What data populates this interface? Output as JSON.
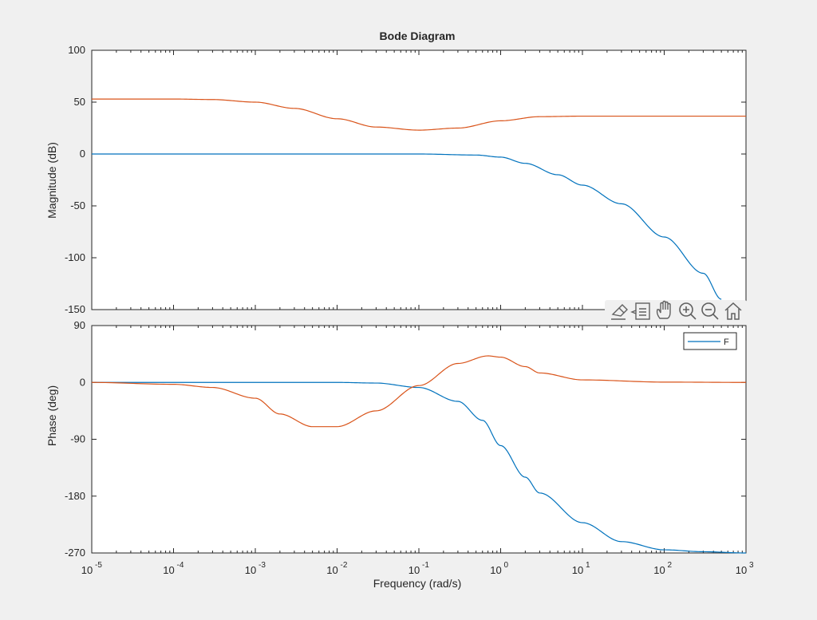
{
  "chart_data": [
    {
      "type": "line",
      "title": "Bode Diagram",
      "xlabel": "Frequency  (rad/s)",
      "ylabel": "Magnitude (dB)",
      "xscale": "log",
      "xlim": [
        1e-05,
        1000
      ],
      "ylim": [
        -150,
        100
      ],
      "yticks": [
        "100",
        "50",
        "0",
        "-50",
        "-100",
        "-150"
      ],
      "grid": false,
      "series": [
        {
          "color": "#0072BD",
          "x": [
            1e-05,
            0.001,
            0.1,
            0.5,
            1,
            2,
            5,
            10,
            30,
            100,
            300,
            500
          ],
          "y": [
            0,
            0,
            0,
            -1,
            -3,
            -9,
            -20,
            -30,
            -48,
            -80,
            -115,
            -140
          ]
        },
        {
          "color": "#D95319",
          "x": [
            1e-05,
            0.0001,
            0.0003,
            0.001,
            0.003,
            0.01,
            0.03,
            0.1,
            0.3,
            1,
            3,
            10,
            100,
            1000
          ],
          "y": [
            53,
            53,
            52.5,
            50,
            44,
            34,
            26,
            23,
            25,
            32,
            36,
            36.5,
            36.5,
            36.5
          ]
        }
      ]
    },
    {
      "type": "line",
      "xlabel": "Frequency  (rad/s)",
      "ylabel": "Phase (deg)",
      "xscale": "log",
      "xlim": [
        1e-05,
        1000
      ],
      "xticks": [
        "10",
        "10",
        "10",
        "10",
        "10",
        "10",
        "10",
        "10",
        "10"
      ],
      "xtick_exponents": [
        "-5",
        "-4",
        "-3",
        "-2",
        "-1",
        "0",
        "1",
        "2",
        "3"
      ],
      "ylim": [
        -270,
        90
      ],
      "yticks": [
        "90",
        "0",
        "-90",
        "-180",
        "-270"
      ],
      "grid": false,
      "legend": {
        "position": "top-right",
        "entries": [
          "F"
        ]
      },
      "series": [
        {
          "name": "F",
          "color": "#0072BD",
          "x": [
            1e-05,
            0.001,
            0.01,
            0.03,
            0.1,
            0.3,
            0.6,
            1,
            2,
            3,
            10,
            30,
            100,
            300,
            1000
          ],
          "y": [
            0,
            0,
            0,
            -1,
            -8,
            -30,
            -60,
            -100,
            -150,
            -175,
            -222,
            -252,
            -265,
            -268,
            -270
          ]
        },
        {
          "color": "#D95319",
          "x": [
            1e-05,
            0.0001,
            0.0003,
            0.001,
            0.002,
            0.005,
            0.01,
            0.03,
            0.1,
            0.3,
            0.7,
            1,
            2,
            3,
            10,
            100,
            1000
          ],
          "y": [
            0,
            -3,
            -8,
            -25,
            -50,
            -70,
            -70,
            -45,
            -5,
            30,
            42,
            40,
            25,
            15,
            4,
            0.5,
            0
          ]
        }
      ]
    }
  ],
  "toolbar": {
    "icons": [
      "brush-export-icon",
      "data-tip-icon",
      "pan-icon",
      "zoom-in-icon",
      "zoom-out-icon",
      "home-icon"
    ]
  }
}
